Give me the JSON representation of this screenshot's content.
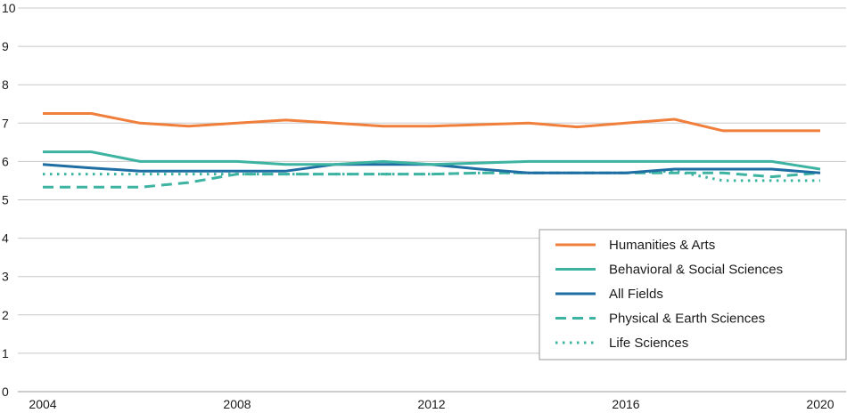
{
  "chart_data": {
    "type": "line",
    "title": "",
    "xlabel": "",
    "ylabel": "",
    "x": [
      2004,
      2005,
      2006,
      2007,
      2008,
      2009,
      2010,
      2011,
      2012,
      2013,
      2014,
      2015,
      2016,
      2017,
      2018,
      2019,
      2020
    ],
    "xlim": [
      2004,
      2020
    ],
    "ylim": [
      0,
      10
    ],
    "xticks": [
      "2004",
      "2008",
      "2012",
      "2016",
      "2020"
    ],
    "yticks": [
      "0",
      "1",
      "2",
      "3",
      "4",
      "5",
      "6",
      "7",
      "8",
      "9",
      "10"
    ],
    "grid": "horizontal",
    "legend_position": "bottom-right",
    "series": [
      {
        "name": "Humanities & Arts",
        "color": "#f07f3c",
        "dash": "solid",
        "values": [
          7.25,
          7.25,
          7.0,
          6.92,
          7.0,
          7.08,
          7.0,
          6.92,
          6.92,
          6.96,
          7.0,
          6.9,
          7.0,
          7.1,
          6.8,
          6.8,
          6.8
        ]
      },
      {
        "name": "Behavioral & Social Sciences",
        "color": "#3db3a1",
        "dash": "solid",
        "values": [
          6.25,
          6.25,
          6.0,
          6.0,
          6.0,
          5.92,
          5.92,
          6.0,
          5.92,
          5.96,
          6.0,
          6.0,
          6.0,
          6.0,
          6.0,
          6.0,
          5.8
        ]
      },
      {
        "name": "All Fields",
        "color": "#1f6ea3",
        "dash": "solid",
        "values": [
          5.92,
          5.83,
          5.75,
          5.75,
          5.75,
          5.75,
          5.92,
          5.92,
          5.92,
          5.8,
          5.7,
          5.7,
          5.7,
          5.8,
          5.8,
          5.8,
          5.7
        ]
      },
      {
        "name": "Physical & Earth Sciences",
        "color": "#3db3a1",
        "dash": "dashed",
        "values": [
          5.33,
          5.33,
          5.33,
          5.45,
          5.67,
          5.67,
          5.67,
          5.67,
          5.67,
          5.7,
          5.7,
          5.7,
          5.7,
          5.7,
          5.7,
          5.6,
          5.7
        ]
      },
      {
        "name": "Life Sciences",
        "color": "#3db3a1",
        "dash": "dotted",
        "values": [
          5.67,
          5.67,
          5.67,
          5.67,
          5.67,
          5.67,
          5.67,
          5.67,
          5.67,
          5.7,
          5.7,
          5.7,
          5.7,
          5.75,
          5.5,
          5.5,
          5.5
        ]
      }
    ]
  }
}
